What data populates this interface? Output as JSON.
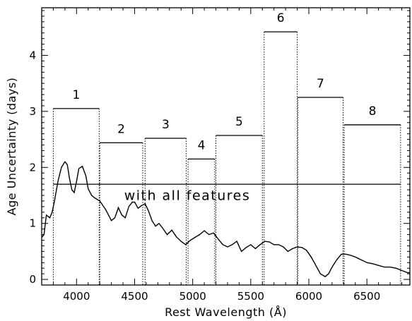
{
  "chart_data": {
    "type": "line",
    "xlabel": "Rest Wavelength (Å)",
    "ylabel": "Age Uncertainty (days)",
    "xlim": [
      3700,
      6870
    ],
    "ylim": [
      -0.1,
      4.85
    ],
    "x_ticks": [
      4000,
      4500,
      5000,
      5500,
      6000,
      6500
    ],
    "y_ticks": [
      0,
      1,
      2,
      3,
      4
    ],
    "annotation": {
      "text": "with all features",
      "x": 4410,
      "y": 1.42
    },
    "all_features_level": {
      "from": 3800,
      "to": 6790,
      "value": 1.7
    },
    "bands": [
      {
        "label": "1",
        "x0": 3800,
        "x1": 4195,
        "value": 3.05
      },
      {
        "label": "2",
        "x0": 4200,
        "x1": 4570,
        "value": 2.44
      },
      {
        "label": "3",
        "x0": 4590,
        "x1": 4945,
        "value": 2.52
      },
      {
        "label": "4",
        "x0": 4960,
        "x1": 5190,
        "value": 2.15
      },
      {
        "label": "5",
        "x0": 5200,
        "x1": 5600,
        "value": 2.57
      },
      {
        "label": "6",
        "x0": 5615,
        "x1": 5900,
        "value": 4.42
      },
      {
        "label": "7",
        "x0": 5905,
        "x1": 6295,
        "value": 3.25
      },
      {
        "label": "8",
        "x0": 6305,
        "x1": 6790,
        "value": 2.76
      }
    ],
    "spectrum": {
      "x": [
        3700,
        3720,
        3740,
        3770,
        3790,
        3810,
        3840,
        3870,
        3900,
        3920,
        3940,
        3960,
        3980,
        4000,
        4020,
        4050,
        4080,
        4100,
        4130,
        4160,
        4200,
        4250,
        4300,
        4330,
        4360,
        4390,
        4420,
        4450,
        4480,
        4500,
        4530,
        4560,
        4590,
        4620,
        4650,
        4680,
        4710,
        4740,
        4780,
        4820,
        4860,
        4900,
        4940,
        4980,
        5020,
        5060,
        5100,
        5140,
        5180,
        5220,
        5260,
        5300,
        5340,
        5380,
        5420,
        5460,
        5500,
        5540,
        5580,
        5620,
        5660,
        5700,
        5740,
        5780,
        5820,
        5860,
        5900,
        5940,
        5980,
        6020,
        6060,
        6100,
        6140,
        6170,
        6200,
        6240,
        6280,
        6320,
        6360,
        6400,
        6450,
        6500,
        6550,
        6600,
        6650,
        6700,
        6750,
        6800,
        6850,
        6870
      ],
      "y": [
        0.75,
        0.8,
        1.15,
        1.1,
        1.2,
        1.4,
        1.75,
        2.0,
        2.1,
        2.05,
        1.8,
        1.6,
        1.55,
        1.75,
        1.98,
        2.02,
        1.85,
        1.62,
        1.5,
        1.45,
        1.4,
        1.25,
        1.05,
        1.1,
        1.28,
        1.15,
        1.1,
        1.3,
        1.38,
        1.38,
        1.27,
        1.32,
        1.35,
        1.22,
        1.05,
        0.95,
        1.0,
        0.92,
        0.8,
        0.88,
        0.76,
        0.68,
        0.62,
        0.7,
        0.75,
        0.8,
        0.87,
        0.8,
        0.83,
        0.72,
        0.62,
        0.58,
        0.62,
        0.68,
        0.5,
        0.57,
        0.62,
        0.55,
        0.62,
        0.68,
        0.67,
        0.62,
        0.62,
        0.58,
        0.5,
        0.55,
        0.58,
        0.57,
        0.52,
        0.4,
        0.25,
        0.1,
        0.05,
        0.1,
        0.22,
        0.35,
        0.45,
        0.45,
        0.43,
        0.4,
        0.35,
        0.3,
        0.28,
        0.25,
        0.22,
        0.22,
        0.2,
        0.16,
        0.12,
        0.12
      ]
    }
  }
}
